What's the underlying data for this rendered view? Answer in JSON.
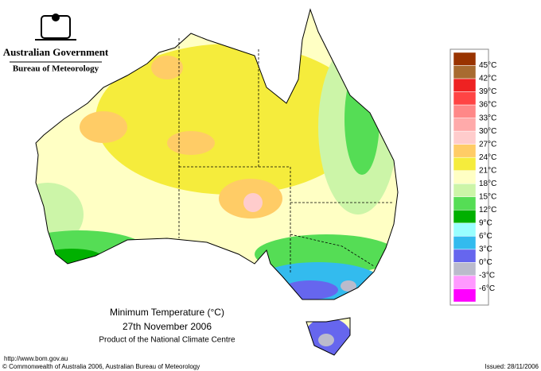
{
  "header": {
    "government": "Australian Government",
    "agency": "Bureau of Meteorology"
  },
  "legend": {
    "labels": [
      "45°C",
      "42°C",
      "39°C",
      "36°C",
      "33°C",
      "30°C",
      "27°C",
      "24°C",
      "21°C",
      "18°C",
      "15°C",
      "12°C",
      "9°C",
      "6°C",
      "3°C",
      "0°C",
      "-3°C",
      "-6°C"
    ],
    "colors": [
      "#993300",
      "#a86b30",
      "#ee2222",
      "#ff4444",
      "#ff8888",
      "#ffaaaa",
      "#ffcccc",
      "#ffcc66",
      "#f5ec3c",
      "#ffffc4",
      "#ccf5a8",
      "#55dd55",
      "#00b000",
      "#99ffff",
      "#33bbee",
      "#6666ee",
      "#bbbbcc",
      "#ff99ff",
      "#ff00ff"
    ]
  },
  "title": {
    "line1": "Minimum Temperature (°C)",
    "line2": "27th November 2006",
    "line3": "Product of the National Climate Centre"
  },
  "footer": {
    "url": "http://www.bom.gov.au",
    "copyright": "© Commonwealth of Australia 2006, Australian Bureau of Meteorology",
    "issued": "Issued: 28/11/2006"
  }
}
